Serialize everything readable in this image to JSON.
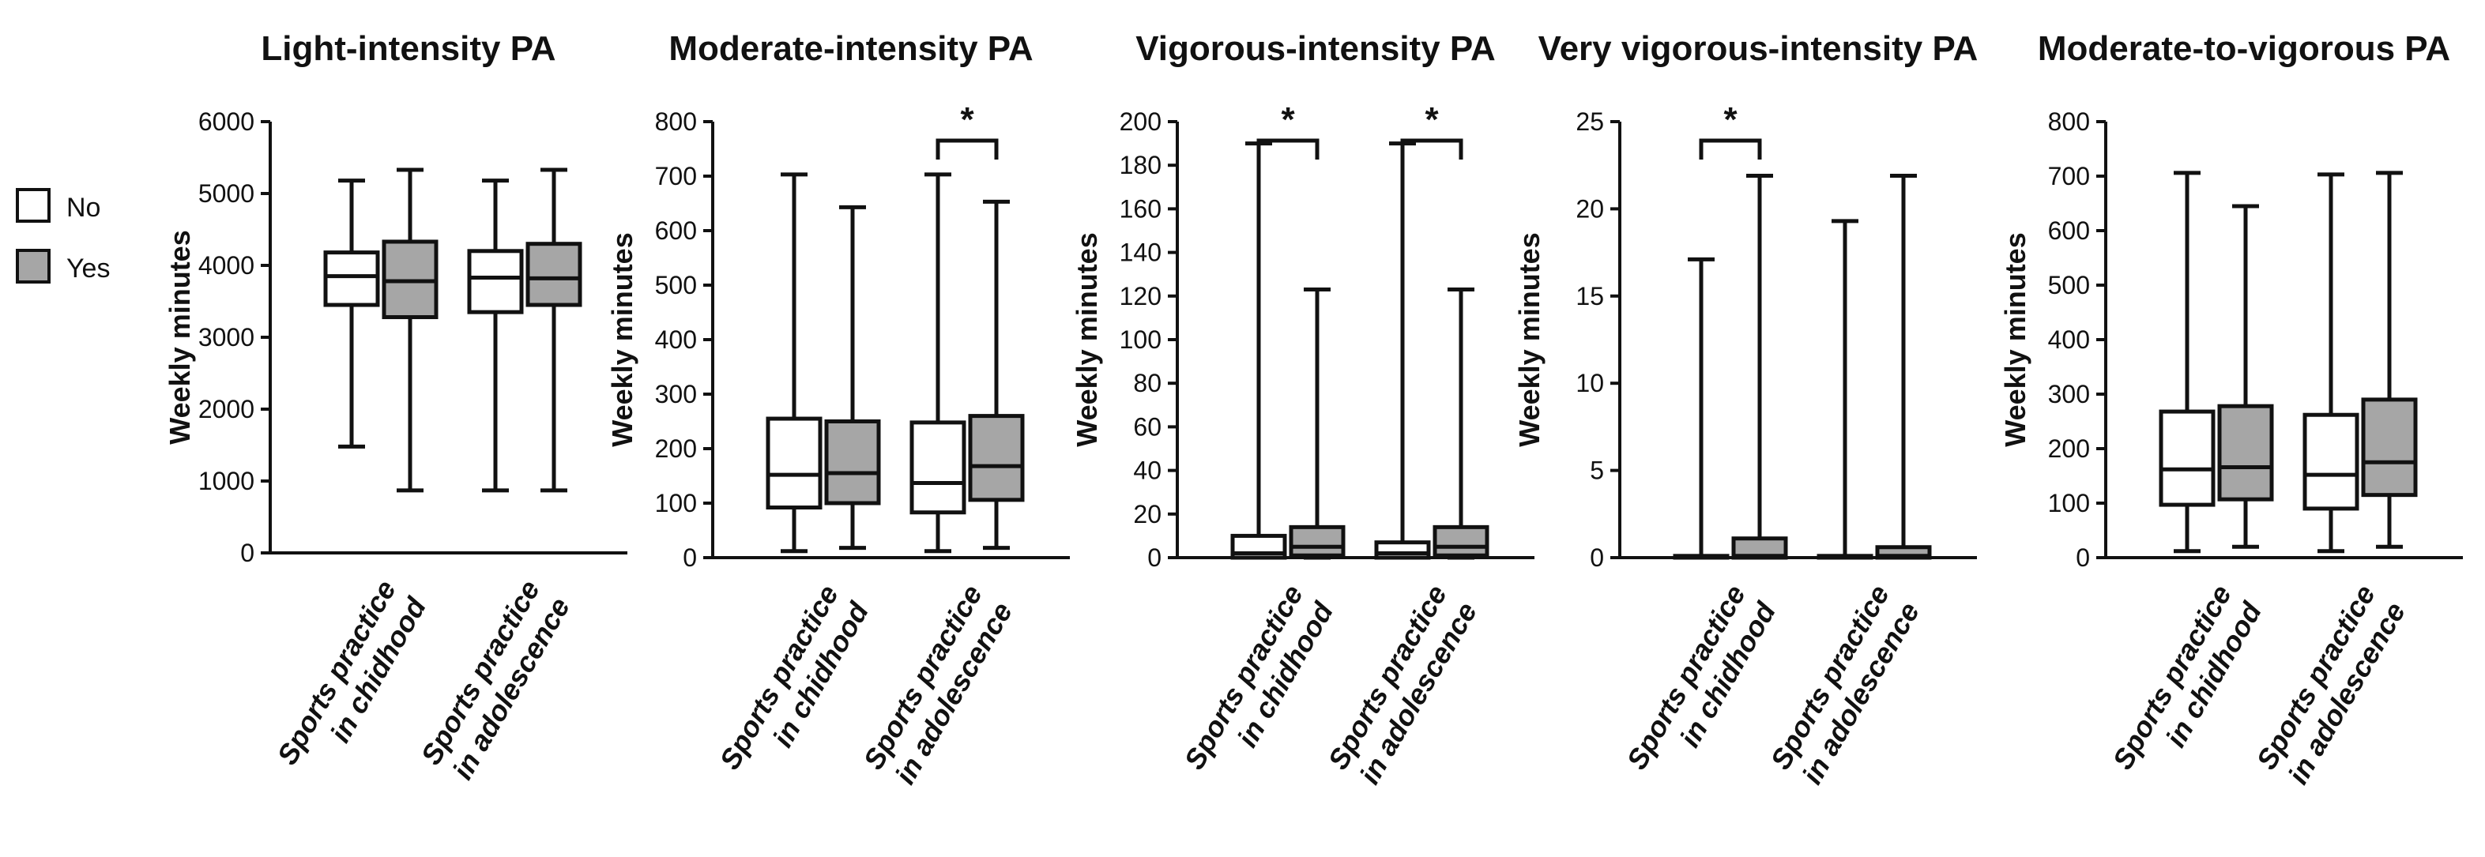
{
  "colors": {
    "no": "#ffffff",
    "yes": "#a6a6a6",
    "stroke": "#111111"
  },
  "legend": [
    {
      "label": "No",
      "color": "#ffffff"
    },
    {
      "label": "Yes",
      "color": "#a6a6a6"
    }
  ],
  "chart_data": [
    {
      "type": "box",
      "title": "Light-intensity PA",
      "ylabel": "Weekly minutes",
      "ylim": [
        0,
        6000
      ],
      "yticks": [
        0,
        1000,
        2000,
        3000,
        4000,
        5000,
        6000
      ],
      "categories": [
        [
          "Sports practice",
          "in chidhood"
        ],
        [
          "Sports practice",
          "in adolescence"
        ]
      ],
      "series": [
        {
          "name": "No",
          "boxes": [
            {
              "min": 1480,
              "q1": 3450,
              "median": 3850,
              "q3": 4180,
              "max": 5180
            },
            {
              "min": 870,
              "q1": 3350,
              "median": 3830,
              "q3": 4200,
              "max": 5180
            }
          ]
        },
        {
          "name": "Yes",
          "boxes": [
            {
              "min": 870,
              "q1": 3280,
              "median": 3780,
              "q3": 4330,
              "max": 5330
            },
            {
              "min": 870,
              "q1": 3450,
              "median": 3820,
              "q3": 4300,
              "max": 5330
            }
          ]
        }
      ],
      "significance": []
    },
    {
      "type": "box",
      "title": "Moderate-intensity PA",
      "ylabel": "Weekly minutes",
      "ylim": [
        0,
        800
      ],
      "yticks": [
        0,
        100,
        200,
        300,
        400,
        500,
        600,
        700,
        800
      ],
      "categories": [
        [
          "Sports practice",
          "in chidhood"
        ],
        [
          "Sports practice",
          "in adolescence"
        ]
      ],
      "series": [
        {
          "name": "No",
          "boxes": [
            {
              "min": 12,
              "q1": 92,
              "median": 152,
              "q3": 255,
              "max": 703
            },
            {
              "min": 12,
              "q1": 83,
              "median": 137,
              "q3": 248,
              "max": 703
            }
          ]
        },
        {
          "name": "Yes",
          "boxes": [
            {
              "min": 18,
              "q1": 100,
              "median": 155,
              "q3": 250,
              "max": 643
            },
            {
              "min": 18,
              "q1": 106,
              "median": 168,
              "q3": 260,
              "max": 653
            }
          ]
        }
      ],
      "significance": [
        {
          "category": 1,
          "label": "*"
        }
      ]
    },
    {
      "type": "box",
      "title": "Vigorous-intensity PA",
      "ylabel": "Weekly minutes",
      "ylim": [
        0,
        200
      ],
      "yticks": [
        0,
        20,
        40,
        60,
        80,
        100,
        120,
        140,
        160,
        180,
        200
      ],
      "categories": [
        [
          "Sports practice",
          "in chidhood"
        ],
        [
          "Sports practice",
          "in adolescence"
        ]
      ],
      "series": [
        {
          "name": "No",
          "boxes": [
            {
              "min": 0,
              "q1": 0,
              "median": 2,
              "q3": 10,
              "max": 190
            },
            {
              "min": 0,
              "q1": 0,
              "median": 2,
              "q3": 7,
              "max": 190
            }
          ]
        },
        {
          "name": "Yes",
          "boxes": [
            {
              "min": 0,
              "q1": 1,
              "median": 5,
              "q3": 14,
              "max": 123
            },
            {
              "min": 0,
              "q1": 1,
              "median": 5,
              "q3": 14,
              "max": 123
            }
          ]
        }
      ],
      "significance": [
        {
          "category": 0,
          "label": "*"
        },
        {
          "category": 1,
          "label": "*"
        }
      ]
    },
    {
      "type": "box",
      "title": "Very vigorous-intensity PA",
      "ylabel": "Weekly minutes",
      "ylim": [
        0,
        25
      ],
      "yticks": [
        0,
        5,
        10,
        15,
        20,
        25
      ],
      "categories": [
        [
          "Sports practice",
          "in chidhood"
        ],
        [
          "Sports practice",
          "in adolescence"
        ]
      ],
      "series": [
        {
          "name": "No",
          "boxes": [
            {
              "min": 0,
              "q1": 0,
              "median": 0,
              "q3": 0.1,
              "max": 17.1
            },
            {
              "min": 0,
              "q1": 0,
              "median": 0,
              "q3": 0.1,
              "max": 19.3
            }
          ]
        },
        {
          "name": "Yes",
          "boxes": [
            {
              "min": 0,
              "q1": 0,
              "median": 0.1,
              "q3": 1.1,
              "max": 21.9
            },
            {
              "min": 0,
              "q1": 0,
              "median": 0.1,
              "q3": 0.6,
              "max": 21.9
            }
          ]
        }
      ],
      "significance": [
        {
          "category": 0,
          "label": "*"
        }
      ]
    },
    {
      "type": "box",
      "title": "Moderate-to-vigorous PA",
      "ylabel": "Weekly minutes",
      "ylim": [
        0,
        800
      ],
      "yticks": [
        0,
        100,
        200,
        300,
        400,
        500,
        600,
        700,
        800
      ],
      "categories": [
        [
          "Sports practice",
          "in chidhood"
        ],
        [
          "Sports practice",
          "in adolescence"
        ]
      ],
      "series": [
        {
          "name": "No",
          "boxes": [
            {
              "min": 12,
              "q1": 97,
              "median": 162,
              "q3": 268,
              "max": 706
            },
            {
              "min": 12,
              "q1": 90,
              "median": 152,
              "q3": 262,
              "max": 703
            }
          ]
        },
        {
          "name": "Yes",
          "boxes": [
            {
              "min": 20,
              "q1": 107,
              "median": 166,
              "q3": 278,
              "max": 645
            },
            {
              "min": 20,
              "q1": 115,
              "median": 175,
              "q3": 290,
              "max": 706
            }
          ]
        }
      ],
      "significance": []
    }
  ]
}
